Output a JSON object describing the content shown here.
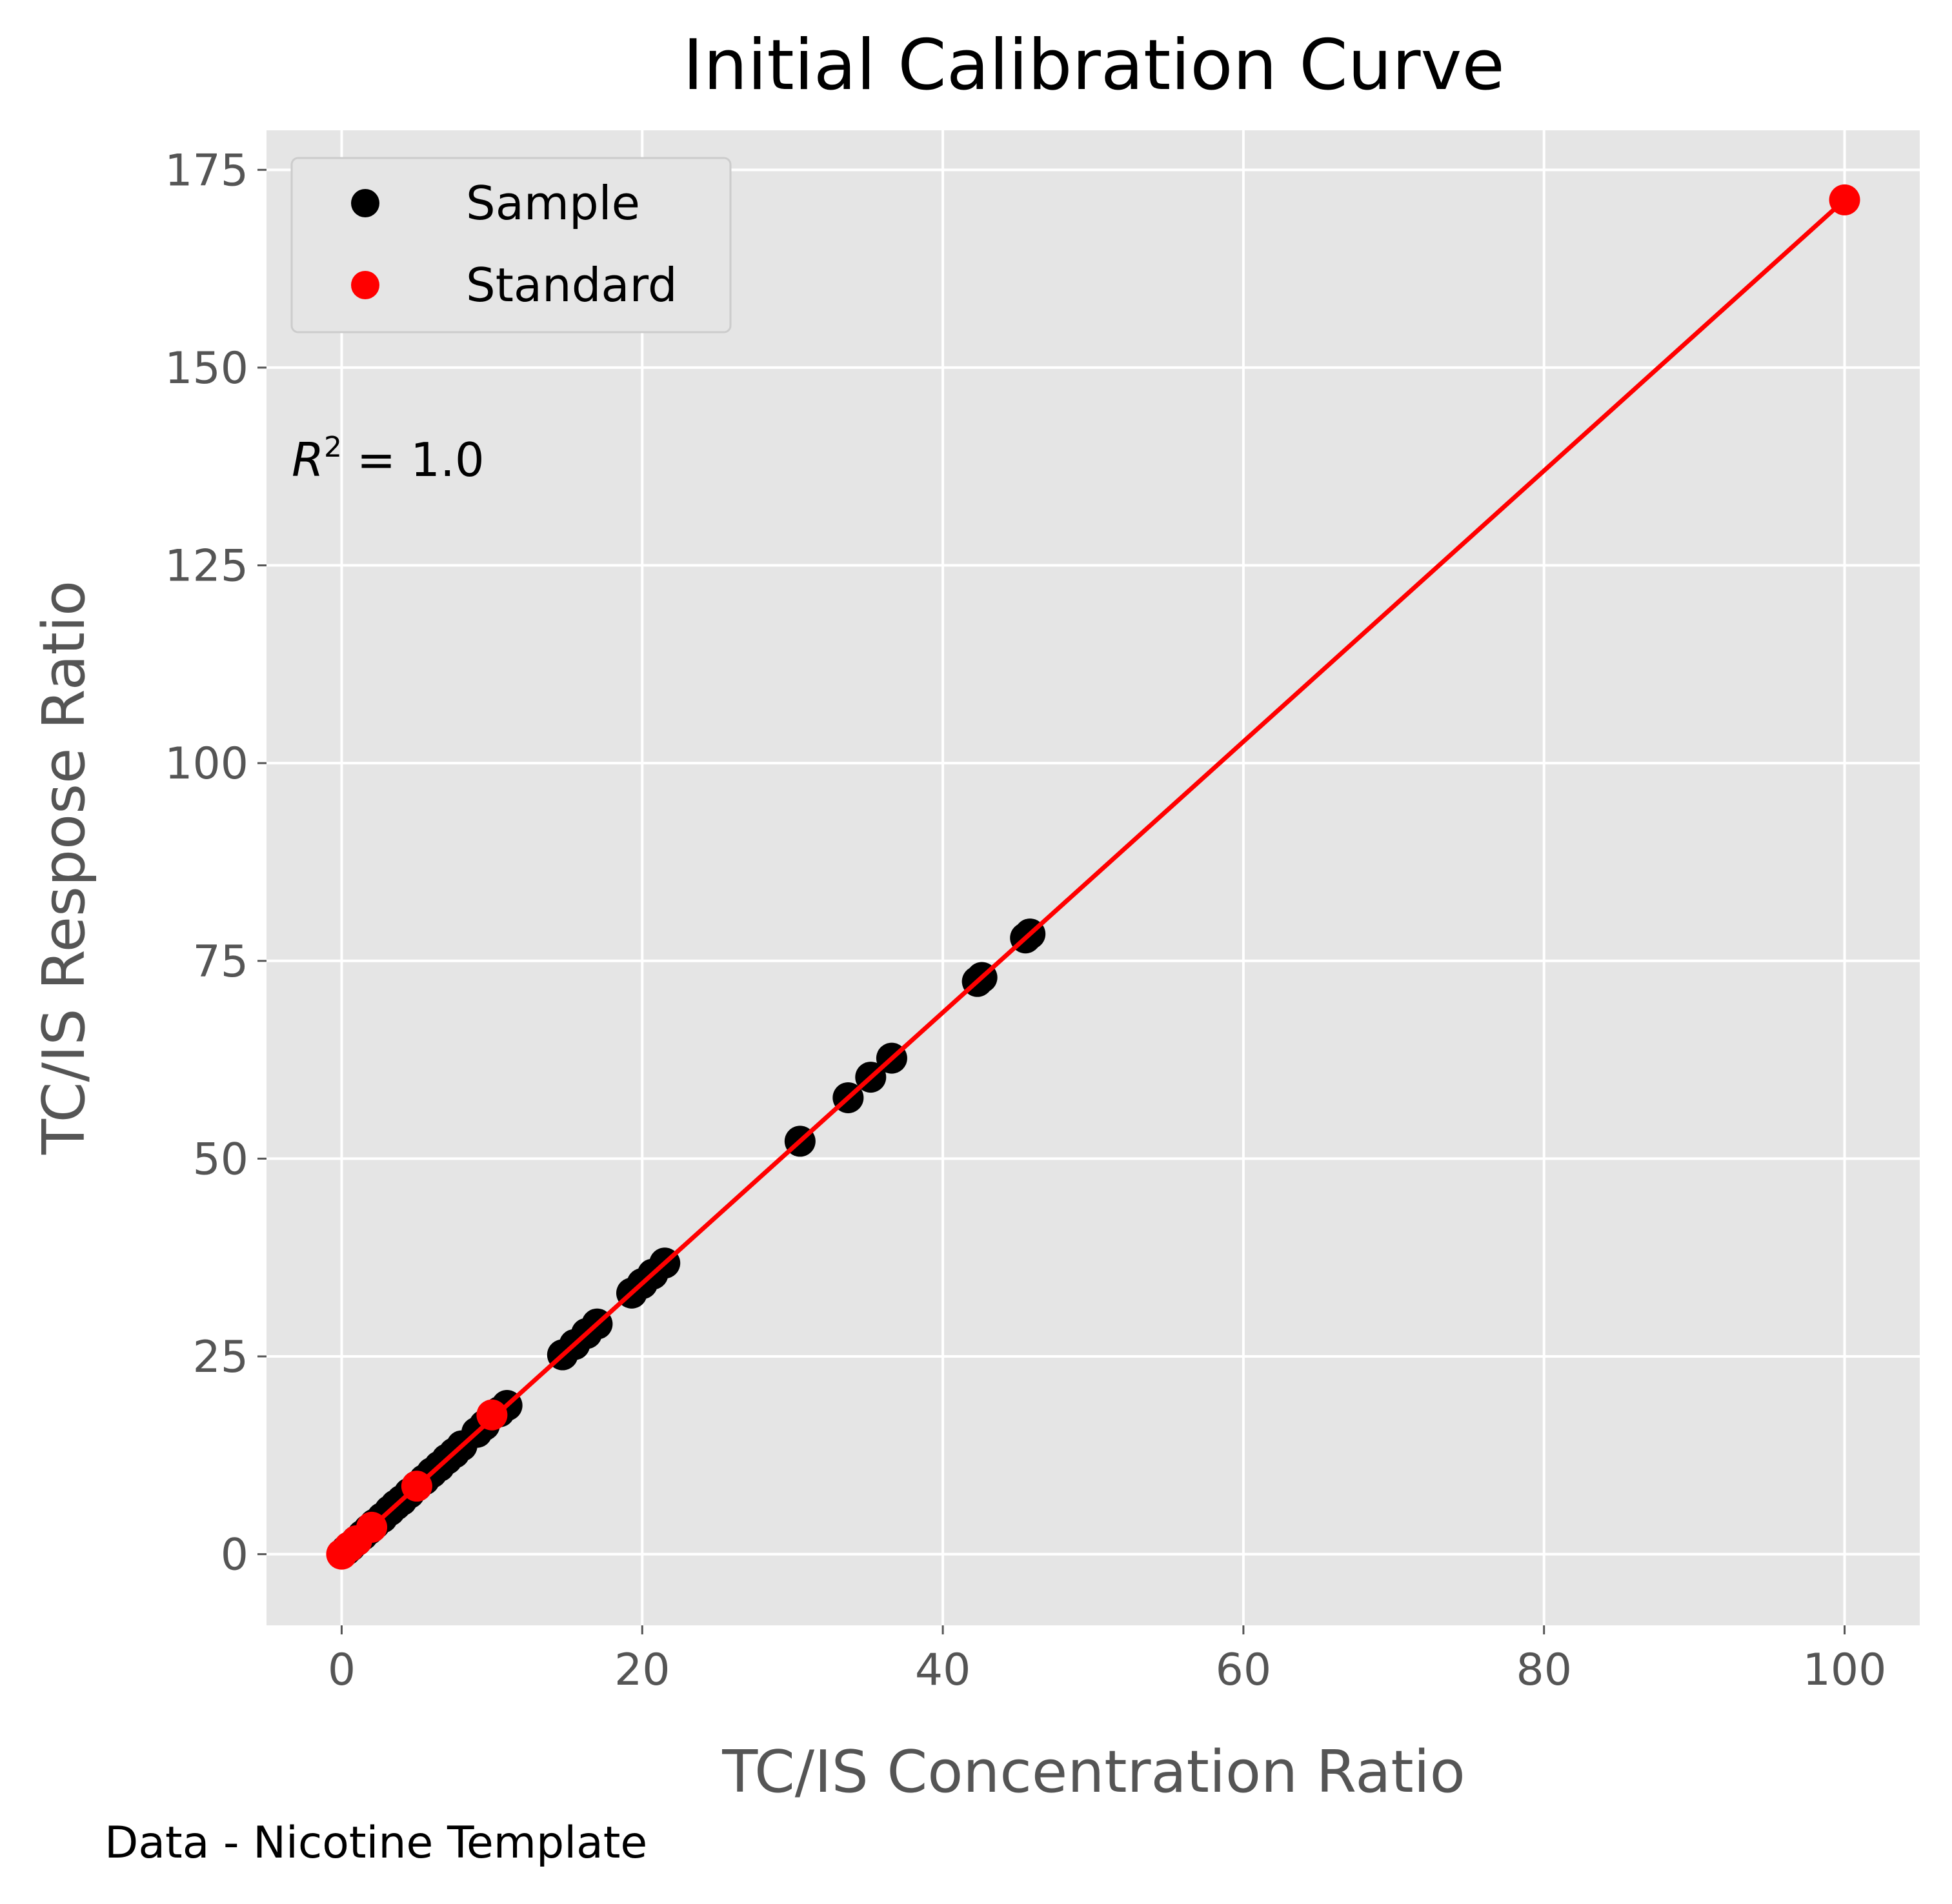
{
  "chart_data": {
    "type": "scatter",
    "title": "Initial Calibration Curve",
    "xlabel": "TC/IS Concentration Ratio",
    "ylabel": "TC/IS Respose Ratio",
    "xlim": [
      -5,
      105
    ],
    "ylim": [
      -9,
      180
    ],
    "xticks": [
      0,
      20,
      40,
      60,
      80,
      100
    ],
    "yticks": [
      0,
      25,
      50,
      75,
      100,
      125,
      150,
      175
    ],
    "grid": true,
    "legend_position": "top-left",
    "annotation": {
      "prefix": "R",
      "sup": "2",
      "text": " = 1.0"
    },
    "footer": "Data - Nicotine Template",
    "fit_line": {
      "x": [
        0,
        100
      ],
      "y": [
        0,
        171.2
      ],
      "color": "#ff0000"
    },
    "series": [
      {
        "name": "Sample",
        "color": "#000000",
        "points": [
          [
            0.3,
            0.5
          ],
          [
            0.6,
            1.0
          ],
          [
            1.0,
            1.7
          ],
          [
            1.4,
            2.4
          ],
          [
            1.8,
            3.1
          ],
          [
            2.2,
            3.8
          ],
          [
            2.7,
            4.6
          ],
          [
            3.2,
            5.5
          ],
          [
            3.6,
            6.2
          ],
          [
            4.0,
            6.8
          ],
          [
            4.5,
            7.7
          ],
          [
            5.0,
            8.6
          ],
          [
            5.5,
            9.4
          ],
          [
            6.0,
            10.3
          ],
          [
            6.5,
            11.1
          ],
          [
            7.0,
            12.0
          ],
          [
            7.5,
            12.8
          ],
          [
            8.0,
            13.7
          ],
          [
            9.0,
            15.4
          ],
          [
            9.5,
            16.3
          ],
          [
            10.5,
            18.0
          ],
          [
            11.0,
            18.8
          ],
          [
            14.7,
            25.2
          ],
          [
            15.5,
            26.5
          ],
          [
            16.3,
            27.9
          ],
          [
            17.0,
            29.1
          ],
          [
            19.3,
            33.0
          ],
          [
            20.0,
            34.2
          ],
          [
            20.7,
            35.4
          ],
          [
            21.5,
            36.8
          ],
          [
            30.5,
            52.2
          ],
          [
            33.7,
            57.7
          ],
          [
            35.2,
            60.3
          ],
          [
            36.6,
            62.7
          ],
          [
            42.3,
            72.4
          ],
          [
            42.6,
            72.9
          ],
          [
            45.5,
            77.9
          ],
          [
            45.8,
            78.4
          ]
        ]
      },
      {
        "name": "Standard",
        "color": "#ff0000",
        "points": [
          [
            0.0,
            0.0
          ],
          [
            0.5,
            0.9
          ],
          [
            1.0,
            1.7
          ],
          [
            2.0,
            3.4
          ],
          [
            5.0,
            8.6
          ],
          [
            10.0,
            17.6
          ],
          [
            100.0,
            171.2
          ]
        ]
      }
    ]
  }
}
